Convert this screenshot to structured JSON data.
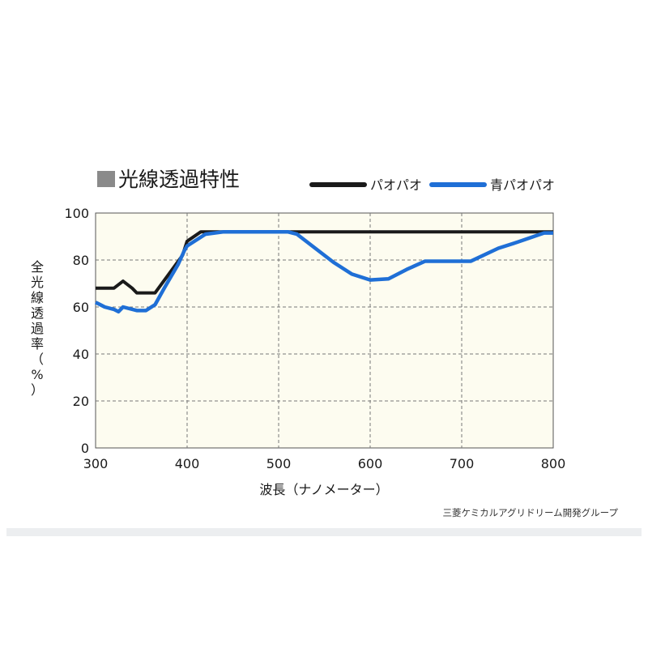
{
  "chart_data": {
    "type": "line",
    "title": "光線透過特性",
    "xlabel": "波長（ナノメーター）",
    "ylabel": "全光線透過率（%）",
    "xlim": [
      300,
      800
    ],
    "ylim": [
      0,
      100
    ],
    "xticks": [
      300,
      400,
      500,
      600,
      700,
      800
    ],
    "yticks": [
      0,
      20,
      40,
      60,
      80,
      100
    ],
    "grid": true,
    "legend_placement": "top-right",
    "series": [
      {
        "name": "パオパオ",
        "color": "#1a1a1a",
        "x": [
          300,
          320,
          330,
          340,
          345,
          365,
          380,
          395,
          400,
          415,
          800
        ],
        "y": [
          68,
          68,
          71,
          68,
          66,
          66,
          74,
          82,
          88,
          92,
          92
        ]
      },
      {
        "name": "青パオパオ",
        "color": "#1f6fd6",
        "x": [
          300,
          310,
          320,
          325,
          330,
          345,
          355,
          365,
          375,
          390,
          397,
          400,
          420,
          440,
          510,
          520,
          540,
          560,
          580,
          600,
          620,
          640,
          660,
          710,
          740,
          760,
          790,
          800
        ],
        "y": [
          62,
          60,
          59,
          58,
          60,
          58.5,
          58.5,
          61,
          68,
          78,
          84,
          86,
          91,
          92,
          92,
          91,
          85,
          79,
          74,
          71.5,
          72,
          76,
          79.5,
          79.5,
          85,
          87.5,
          91.5,
          91.5
        ]
      }
    ]
  },
  "credit": "三菱ケミカルアグリドリーム開発グループ",
  "colors": {
    "plot_bg": "#fdfcf0",
    "grid": "#777777"
  }
}
